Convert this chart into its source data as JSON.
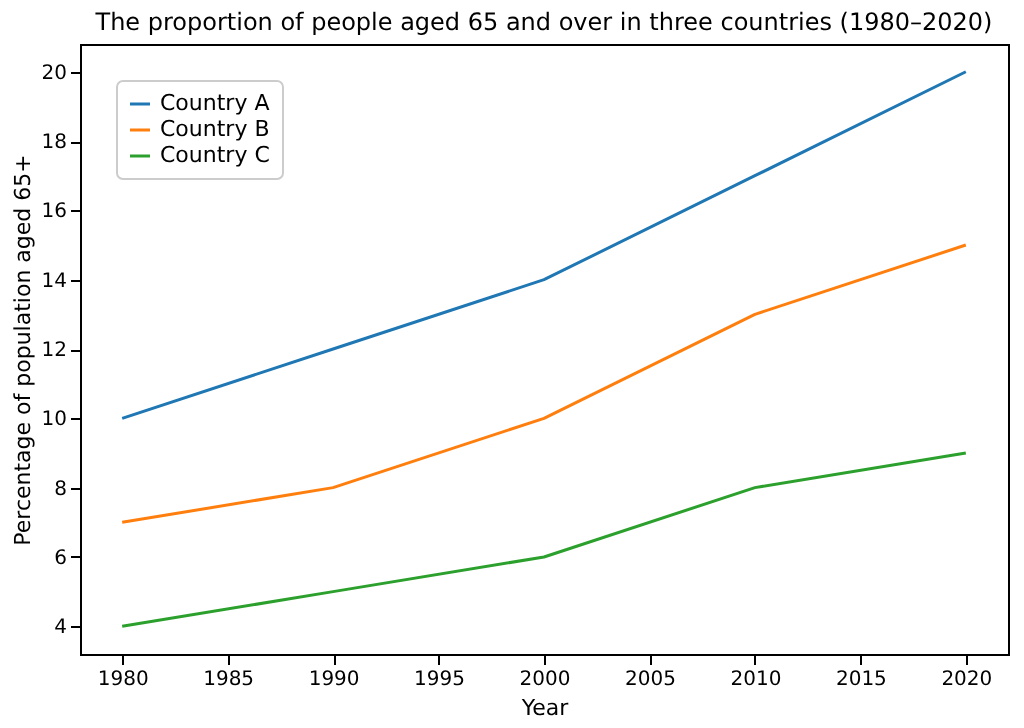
{
  "chart_data": {
    "type": "line",
    "title": "The proportion of people aged 65 and over in three countries (1980–2020)",
    "xlabel": "Year",
    "ylabel": "Percentage of population aged 65+",
    "x": [
      1980,
      1990,
      2000,
      2010,
      2020
    ],
    "series": [
      {
        "name": "Country A",
        "color": "#1f77b4",
        "values": [
          10,
          12,
          14,
          17,
          20
        ]
      },
      {
        "name": "Country B",
        "color": "#ff7f0e",
        "values": [
          7,
          8,
          10,
          13,
          15
        ]
      },
      {
        "name": "Country C",
        "color": "#2ca02c",
        "values": [
          4,
          5,
          6,
          8,
          9
        ]
      }
    ],
    "xlim": [
      1978,
      2022
    ],
    "xticks": [
      1980,
      1985,
      1990,
      1995,
      2000,
      2005,
      2010,
      2015,
      2020
    ],
    "ylim": [
      3.2,
      20.8
    ],
    "yticks": [
      4,
      6,
      8,
      10,
      12,
      14,
      16,
      18,
      20
    ],
    "grid": false,
    "legend": "top left",
    "marker": "none",
    "line_style": "solid"
  }
}
